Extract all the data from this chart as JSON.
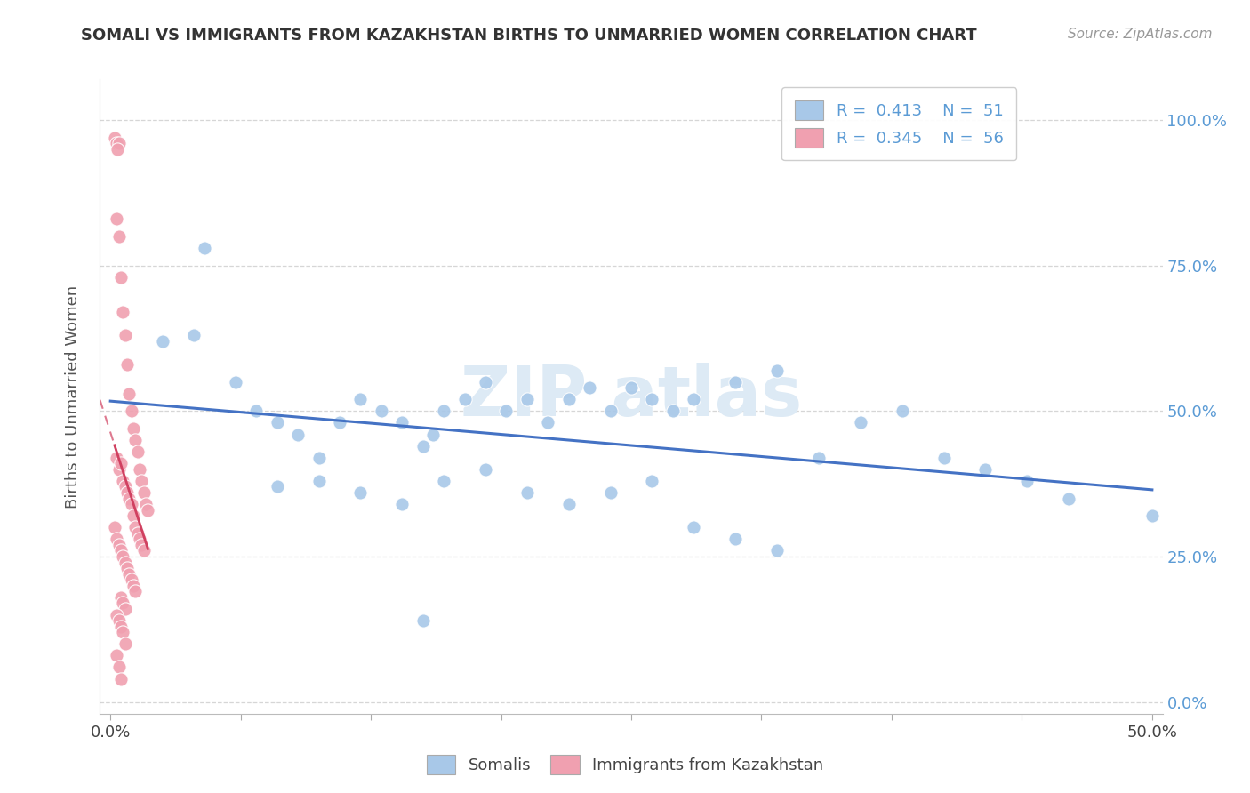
{
  "title": "SOMALI VS IMMIGRANTS FROM KAZAKHSTAN BIRTHS TO UNMARRIED WOMEN CORRELATION CHART",
  "source": "Source: ZipAtlas.com",
  "ylabel": "Births to Unmarried Women",
  "yticks": [
    "0.0%",
    "25.0%",
    "50.0%",
    "75.0%",
    "100.0%"
  ],
  "ytick_values": [
    0.0,
    0.25,
    0.5,
    0.75,
    1.0
  ],
  "xlim": [
    0.0,
    0.5
  ],
  "ylim": [
    0.0,
    1.05
  ],
  "somali_color": "#a8c8e8",
  "kazakhstan_color": "#f0a0b0",
  "somali_line_color": "#4472c4",
  "kazakhstan_line_color": "#d04060",
  "watermark_text": "ZIP atlas",
  "somali_scatter_x": [
    0.025,
    0.04,
    0.06,
    0.07,
    0.08,
    0.09,
    0.1,
    0.11,
    0.12,
    0.13,
    0.14,
    0.15,
    0.155,
    0.16,
    0.17,
    0.18,
    0.19,
    0.2,
    0.21,
    0.22,
    0.23,
    0.24,
    0.25,
    0.26,
    0.27,
    0.28,
    0.3,
    0.32,
    0.34,
    0.36,
    0.38,
    0.4,
    0.42,
    0.44,
    0.46,
    0.5,
    0.1,
    0.12,
    0.14,
    0.16,
    0.18,
    0.2,
    0.22,
    0.24,
    0.26,
    0.28,
    0.3,
    0.32,
    0.045,
    0.08,
    0.15
  ],
  "somali_scatter_y": [
    0.62,
    0.63,
    0.55,
    0.5,
    0.48,
    0.46,
    0.42,
    0.48,
    0.52,
    0.5,
    0.48,
    0.44,
    0.46,
    0.5,
    0.52,
    0.55,
    0.5,
    0.52,
    0.48,
    0.52,
    0.54,
    0.5,
    0.54,
    0.52,
    0.5,
    0.52,
    0.55,
    0.57,
    0.42,
    0.48,
    0.5,
    0.42,
    0.4,
    0.38,
    0.35,
    0.32,
    0.38,
    0.36,
    0.34,
    0.38,
    0.4,
    0.36,
    0.34,
    0.36,
    0.38,
    0.3,
    0.28,
    0.26,
    0.78,
    0.37,
    0.14
  ],
  "kaz_scatter_x": [
    0.002,
    0.003,
    0.004,
    0.0035,
    0.003,
    0.004,
    0.005,
    0.006,
    0.007,
    0.008,
    0.009,
    0.01,
    0.011,
    0.012,
    0.013,
    0.014,
    0.015,
    0.016,
    0.017,
    0.018,
    0.003,
    0.004,
    0.005,
    0.006,
    0.007,
    0.008,
    0.009,
    0.01,
    0.011,
    0.012,
    0.013,
    0.014,
    0.015,
    0.016,
    0.002,
    0.003,
    0.004,
    0.005,
    0.006,
    0.007,
    0.008,
    0.009,
    0.01,
    0.011,
    0.012,
    0.005,
    0.006,
    0.007,
    0.003,
    0.004,
    0.005,
    0.006,
    0.007,
    0.003,
    0.004,
    0.005
  ],
  "kaz_scatter_y": [
    0.97,
    0.96,
    0.96,
    0.95,
    0.83,
    0.8,
    0.73,
    0.67,
    0.63,
    0.58,
    0.53,
    0.5,
    0.47,
    0.45,
    0.43,
    0.4,
    0.38,
    0.36,
    0.34,
    0.33,
    0.42,
    0.4,
    0.41,
    0.38,
    0.37,
    0.36,
    0.35,
    0.34,
    0.32,
    0.3,
    0.29,
    0.28,
    0.27,
    0.26,
    0.3,
    0.28,
    0.27,
    0.26,
    0.25,
    0.24,
    0.23,
    0.22,
    0.21,
    0.2,
    0.19,
    0.18,
    0.17,
    0.16,
    0.15,
    0.14,
    0.13,
    0.12,
    0.1,
    0.08,
    0.06,
    0.04
  ],
  "somali_line_x0": 0.0,
  "somali_line_x1": 0.5,
  "somali_line_y0": 0.375,
  "somali_line_y1": 0.635,
  "kaz_line_solid_x0": 0.002,
  "kaz_line_solid_x1": 0.018,
  "kaz_line_solid_y0": 0.54,
  "kaz_line_solid_y1": 0.34,
  "kaz_line_dash_x0": 0.002,
  "kaz_line_dash_x1": 0.08,
  "kaz_line_dash_y0": 0.54,
  "kaz_line_dash_y1": 1.05
}
